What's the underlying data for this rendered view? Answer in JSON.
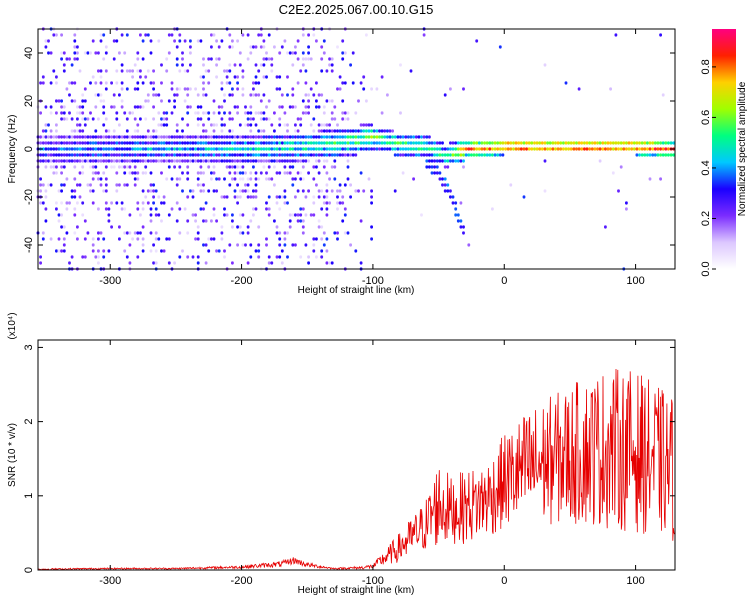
{
  "title": "C2E2.2025.067.00.10.G15",
  "chart_data": [
    {
      "type": "heatmap",
      "title": "C2E2.2025.067.00.10.G15",
      "xlabel": "Height of straight line (km)",
      "ylabel": "Frequency (Hz)",
      "xlim": [
        -355,
        130
      ],
      "ylim": [
        -50,
        50
      ],
      "xticks": [
        -300,
        -200,
        -100,
        0,
        100
      ],
      "yticks": [
        -40,
        -20,
        0,
        20,
        40
      ],
      "colorbar": {
        "label": "Normalized spectral amplitude",
        "range": [
          0.0,
          0.95
        ],
        "ticks": [
          "0.0",
          "0.2",
          "0.4",
          "0.6",
          "0.8"
        ],
        "colormap": [
          "#ffffff",
          "#dcc7ff",
          "#7b2cff",
          "#1a00ff",
          "#00c8ff",
          "#00ff80",
          "#a0ff00",
          "#ffd000",
          "#ff2000",
          "#ff0080"
        ]
      },
      "ridge": {
        "x": [
          -355,
          -300,
          -250,
          -200,
          -150,
          -120,
          -100,
          -80,
          -60,
          -45,
          -30,
          0,
          50,
          100,
          130
        ],
        "y": [
          0,
          0,
          0,
          0,
          1,
          3,
          5,
          2,
          1,
          -3,
          0,
          1,
          1,
          1,
          0
        ],
        "peak_amplitude": [
          0.35,
          0.4,
          0.4,
          0.45,
          0.5,
          0.55,
          0.6,
          0.55,
          0.55,
          0.5,
          0.8,
          0.9,
          0.9,
          0.9,
          0.85
        ]
      },
      "branch": {
        "x": [
          -60,
          -50,
          -45,
          -40,
          -35,
          -30
        ],
        "y": [
          -5,
          -10,
          -15,
          -20,
          -28,
          -35
        ]
      }
    },
    {
      "type": "line",
      "xlabel": "Height of straight line (km)",
      "ylabel": "SNR (10 * v/v)",
      "y_multiplier": "(x10⁴)",
      "xlim": [
        -355,
        130
      ],
      "ylim": [
        0,
        3.1
      ],
      "xticks": [
        -300,
        -200,
        -100,
        0,
        100
      ],
      "yticks": [
        0,
        1,
        2,
        3
      ],
      "color": "#e60000",
      "series": [
        {
          "x": [
            -355,
            -300,
            -250,
            -200,
            -170,
            -160,
            -150,
            -130,
            -110,
            -100,
            -80,
            -60,
            -50,
            -40,
            -30,
            -20,
            -10,
            0,
            20,
            40,
            60,
            80,
            100,
            120,
            130
          ],
          "y": [
            0.01,
            0.02,
            0.02,
            0.04,
            0.08,
            0.13,
            0.07,
            0.02,
            0.03,
            0.05,
            0.3,
            0.6,
            0.9,
            0.8,
            0.85,
            0.9,
            1.0,
            1.2,
            1.4,
            1.5,
            1.6,
            1.65,
            1.6,
            1.45,
            1.35
          ],
          "spread": [
            0.01,
            0.01,
            0.01,
            0.02,
            0.04,
            0.05,
            0.03,
            0.01,
            0.02,
            0.03,
            0.2,
            0.35,
            0.6,
            0.45,
            0.5,
            0.5,
            0.55,
            0.65,
            0.8,
            0.9,
            1.0,
            1.1,
            1.1,
            1.0,
            1.0
          ]
        }
      ]
    }
  ]
}
